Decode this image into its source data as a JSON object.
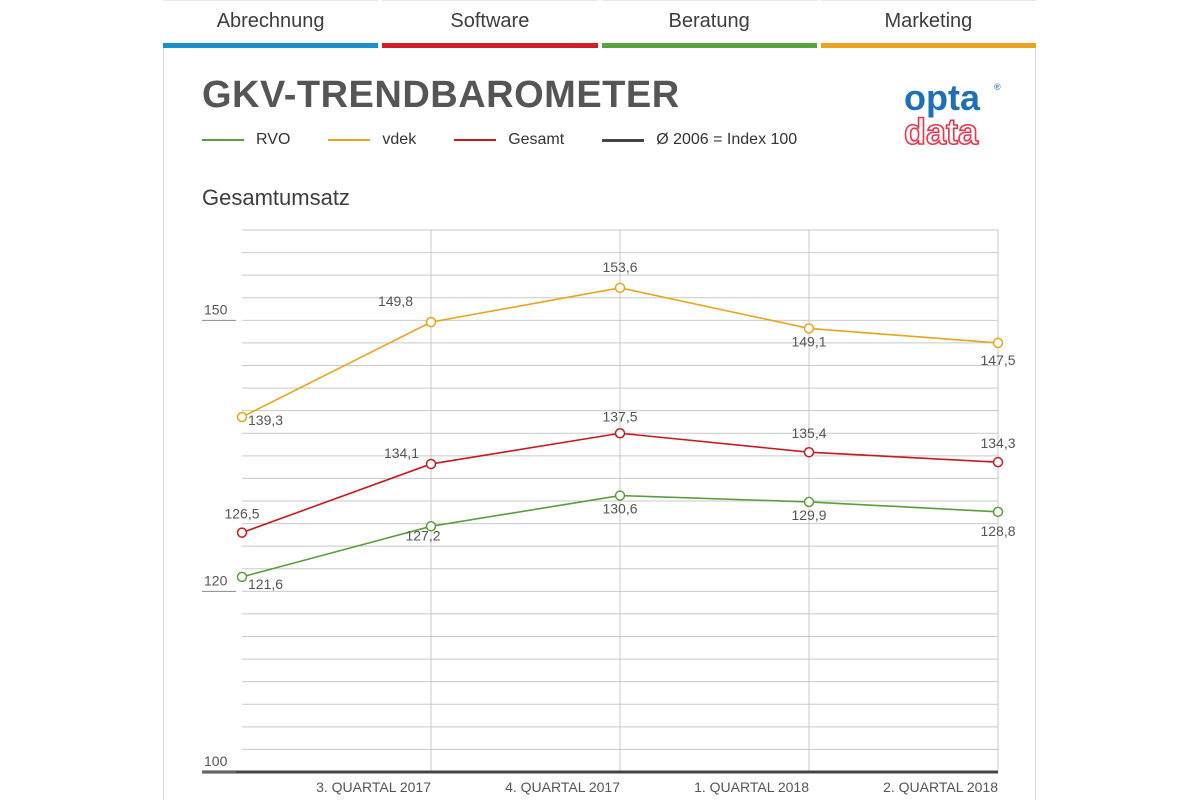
{
  "tabs": [
    {
      "label": "Abrechnung",
      "color": "#1a8fc8"
    },
    {
      "label": "Software",
      "color": "#d01e2a"
    },
    {
      "label": "Beratung",
      "color": "#57a63c"
    },
    {
      "label": "Marketing",
      "color": "#eba21f"
    }
  ],
  "header": {
    "title": "GKV-TRENDBAROMETER",
    "logo": {
      "top": "opta",
      "bottom": "data",
      "mark": "®",
      "top_color": "#1e6fb8",
      "bottom_color": "#e8334a"
    }
  },
  "legend": [
    {
      "label": "RVO",
      "color": "#5a9e3a"
    },
    {
      "label": "vdek",
      "color": "#e9a41c"
    },
    {
      "label": "Gesamt",
      "color": "#c8191f"
    },
    {
      "label": "Ø 2006 = Index 100",
      "color": "#444444"
    }
  ],
  "chart_data": {
    "type": "line",
    "title": "Gesamtumsatz",
    "categories": [
      "",
      "3. QUARTAL 2017",
      "4. QUARTAL 2017",
      "1. QUARTAL 2018",
      "2. QUARTAL 2018"
    ],
    "ylim": [
      100,
      160
    ],
    "y_tick_labels": [
      {
        "value": 100,
        "label": "100"
      },
      {
        "value": 120,
        "label": "120"
      },
      {
        "value": 150,
        "label": "150"
      }
    ],
    "grid": true,
    "legend_placement": "top",
    "series": [
      {
        "name": "vdek",
        "color": "#e9a41c",
        "values": [
          139.3,
          149.8,
          153.6,
          149.1,
          147.5
        ],
        "labels": [
          "139,3",
          "149,8",
          "153,6",
          "149,1",
          "147,5"
        ]
      },
      {
        "name": "Gesamt",
        "color": "#c8191f",
        "values": [
          126.5,
          134.1,
          137.5,
          135.4,
          134.3
        ],
        "labels": [
          "126,5",
          "134,1",
          "137,5",
          "135,4",
          "134,3"
        ]
      },
      {
        "name": "RVO",
        "color": "#5a9e3a",
        "values": [
          121.6,
          127.2,
          130.6,
          129.9,
          128.8
        ],
        "labels": [
          "121,6",
          "127,2",
          "130,6",
          "129,9",
          "128,8"
        ]
      }
    ]
  }
}
